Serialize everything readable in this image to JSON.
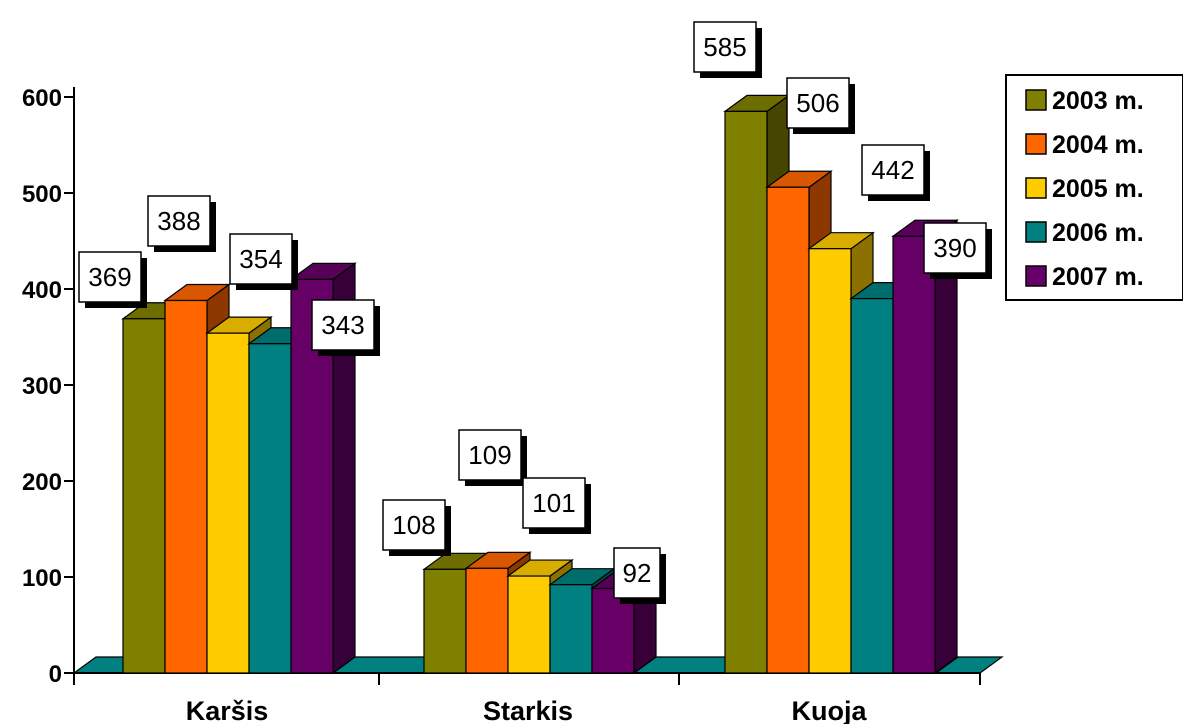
{
  "chart_data": {
    "type": "bar",
    "categories": [
      "Karšis",
      "Starkis",
      "Kuoja"
    ],
    "series": [
      {
        "name": "2003 m.",
        "values": [
          369,
          108,
          585
        ],
        "color": "#808000"
      },
      {
        "name": "2004 m.",
        "values": [
          388,
          109,
          506
        ],
        "color": "#ff6600"
      },
      {
        "name": "2005 m.",
        "values": [
          354,
          101,
          442
        ],
        "color": "#ffcc00"
      },
      {
        "name": "2006 m.",
        "values": [
          343,
          92,
          390
        ],
        "color": "#008080"
      },
      {
        "name": "2007 m.",
        "values": [
          410,
          88,
          455
        ],
        "color": "#660066"
      }
    ],
    "data_labels": [
      [
        "369",
        "388",
        "354",
        "343"
      ],
      [
        "108",
        "109",
        "101",
        "92"
      ],
      [
        "585",
        "506",
        "442",
        "390"
      ]
    ],
    "yticks": [
      "0",
      "100",
      "200",
      "300",
      "400",
      "500",
      "600"
    ],
    "ylim": [
      0,
      600
    ],
    "title": "",
    "xlabel": "",
    "ylabel": "",
    "legend_position": "right",
    "grid": false,
    "style": "3d-clustered-column"
  }
}
